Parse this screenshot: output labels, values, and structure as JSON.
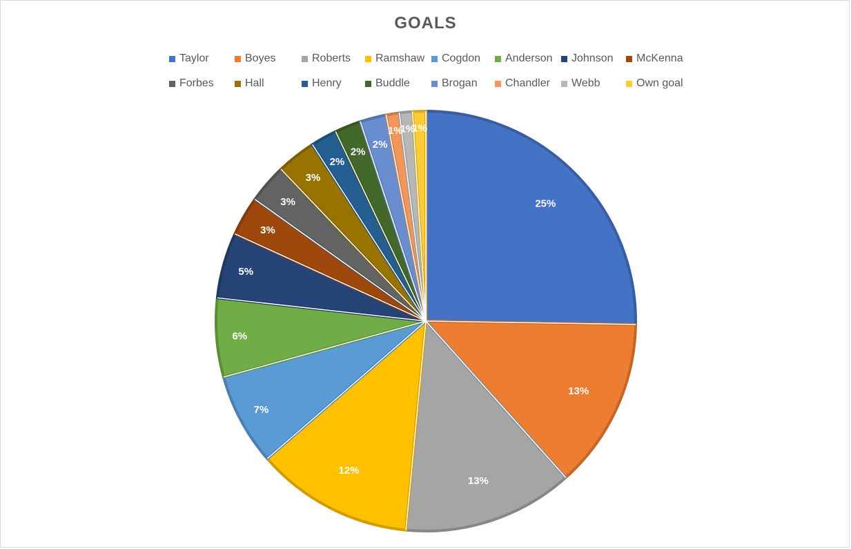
{
  "chart_data": {
    "type": "pie",
    "title": "GOALS",
    "legend_position": "top",
    "categories": [
      "Taylor",
      "Boyes",
      "Roberts",
      "Ramshaw",
      "Cogdon",
      "Anderson",
      "Johnson",
      "McKenna",
      "Forbes",
      "Hall",
      "Henry",
      "Buddle",
      "Brogan",
      "Chandler",
      "Webb",
      "Own goal"
    ],
    "values": [
      25,
      13,
      13,
      12,
      7,
      6,
      5,
      3,
      3,
      3,
      2,
      2,
      2,
      1,
      1,
      1
    ],
    "labels": [
      "25%",
      "13%",
      "13%",
      "12%",
      "7%",
      "6%",
      "5%",
      "3%",
      "3%",
      "3%",
      "2%",
      "2%",
      "2%",
      "1%",
      "1%",
      "1%"
    ],
    "colors": [
      "#4472C4",
      "#ED7D31",
      "#A5A5A5",
      "#FFC000",
      "#5B9BD5",
      "#70AD47",
      "#264478",
      "#9E480E",
      "#636363",
      "#997300",
      "#255E91",
      "#43682B",
      "#698ED0",
      "#F1975A",
      "#B7B7B7",
      "#FFCD33"
    ]
  }
}
